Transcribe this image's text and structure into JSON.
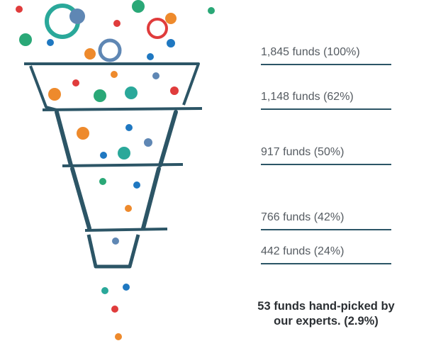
{
  "stages": [
    {
      "label": "1,845 funds (100%)"
    },
    {
      "label": "1,148 funds (62%)"
    },
    {
      "label": "917 funds (50%)"
    },
    {
      "label": "766 funds (42%)"
    },
    {
      "label": "442 funds (24%)"
    }
  ],
  "summary": {
    "line1": "53 funds hand-picked by",
    "line2": "our experts. (2.9%)"
  },
  "colors": {
    "funnel": "#2c5566",
    "rule": "#2c5566",
    "teal": "#2aa89a",
    "green": "#2aa877",
    "red": "#e03c3c",
    "orange": "#ee8a2c",
    "blue": "#1f78c1",
    "slate": "#5f87b4"
  }
}
